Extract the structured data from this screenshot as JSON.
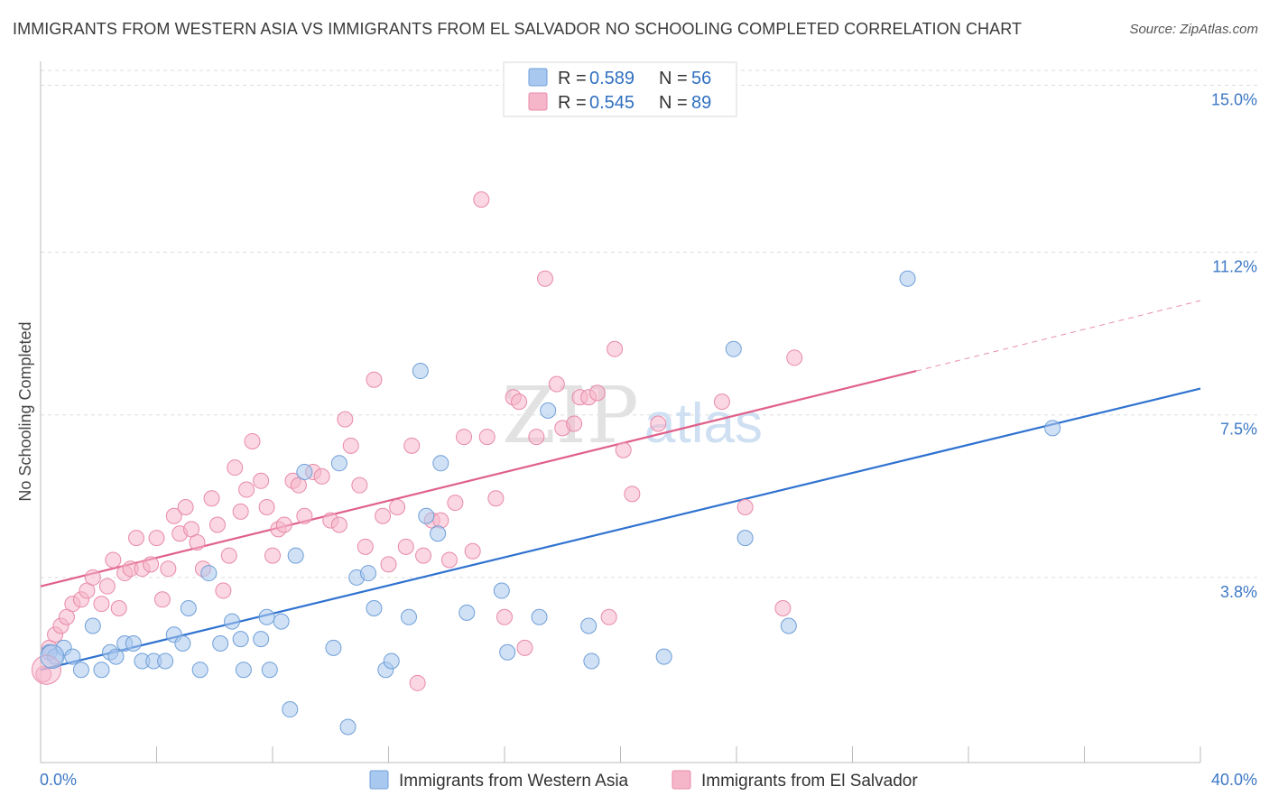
{
  "header": {
    "title": "IMMIGRANTS FROM WESTERN ASIA VS IMMIGRANTS FROM EL SALVADOR NO SCHOOLING COMPLETED CORRELATION CHART",
    "source": "Source: ZipAtlas.com"
  },
  "watermark": {
    "zip": "ZIP",
    "atlas": "atlas"
  },
  "legend": {
    "rows": [
      {
        "r_label": "R =",
        "r_value": "0.589",
        "n_label": "N =",
        "n_value": "56",
        "color": "#a9c8ef"
      },
      {
        "r_label": "R =",
        "r_value": "0.545",
        "n_label": "N =",
        "n_value": "89",
        "color": "#f6b6ca"
      }
    ]
  },
  "chart_data": {
    "type": "scatter",
    "title": "IMMIGRANTS FROM WESTERN ASIA VS IMMIGRANTS FROM EL SALVADOR NO SCHOOLING COMPLETED CORRELATION CHART",
    "ylabel": "No Schooling Completed",
    "xlabel": "",
    "xlim": [
      0,
      40
    ],
    "ylim": [
      0,
      15.4
    ],
    "x_tick_labels": [
      "0.0%",
      "40.0%"
    ],
    "y_ticks": [
      3.8,
      7.5,
      11.2,
      15.0
    ],
    "y_tick_labels": [
      "3.8%",
      "7.5%",
      "11.2%",
      "15.0%"
    ],
    "grid": "horizontal dashed",
    "legend_position": "top-center",
    "series": [
      {
        "name": "Immigrants from Western Asia",
        "color": "#a9c8ef",
        "stroke": "#6f9fd8",
        "line_color": "#2f72d0",
        "trend": {
          "x0": 0,
          "y0": 1.7,
          "x1": 40,
          "y1": 8.1
        },
        "points": [
          [
            0.3,
            2.1
          ],
          [
            0.5,
            2.0
          ],
          [
            0.8,
            2.2
          ],
          [
            1.1,
            2.0
          ],
          [
            1.4,
            1.7
          ],
          [
            1.8,
            2.7
          ],
          [
            2.1,
            1.7
          ],
          [
            2.4,
            2.1
          ],
          [
            2.6,
            2.0
          ],
          [
            2.9,
            2.3
          ],
          [
            3.2,
            2.3
          ],
          [
            3.5,
            1.9
          ],
          [
            3.9,
            1.9
          ],
          [
            4.3,
            1.9
          ],
          [
            4.6,
            2.5
          ],
          [
            4.9,
            2.3
          ],
          [
            5.1,
            3.1
          ],
          [
            5.5,
            1.7
          ],
          [
            5.8,
            3.9
          ],
          [
            6.2,
            2.3
          ],
          [
            6.6,
            2.8
          ],
          [
            6.9,
            2.4
          ],
          [
            7.0,
            1.7
          ],
          [
            7.6,
            2.4
          ],
          [
            7.8,
            2.9
          ],
          [
            7.9,
            1.7
          ],
          [
            8.3,
            2.8
          ],
          [
            8.6,
            0.8
          ],
          [
            8.8,
            4.3
          ],
          [
            9.1,
            6.2
          ],
          [
            10.1,
            2.2
          ],
          [
            10.3,
            6.4
          ],
          [
            10.6,
            0.4
          ],
          [
            10.9,
            3.8
          ],
          [
            11.3,
            3.9
          ],
          [
            11.5,
            3.1
          ],
          [
            11.9,
            1.7
          ],
          [
            12.1,
            1.9
          ],
          [
            12.7,
            2.9
          ],
          [
            13.1,
            8.5
          ],
          [
            13.3,
            5.2
          ],
          [
            13.7,
            4.8
          ],
          [
            13.8,
            6.4
          ],
          [
            14.7,
            3.0
          ],
          [
            15.9,
            3.5
          ],
          [
            16.1,
            2.1
          ],
          [
            17.2,
            2.9
          ],
          [
            17.5,
            7.6
          ],
          [
            18.9,
            2.7
          ],
          [
            19.0,
            1.9
          ],
          [
            21.5,
            2.0
          ],
          [
            23.9,
            9.0
          ],
          [
            24.3,
            4.7
          ],
          [
            25.8,
            2.7
          ],
          [
            29.9,
            10.6
          ],
          [
            34.9,
            7.2
          ]
        ]
      },
      {
        "name": "Immigrants from El Salvador",
        "color": "#f6b6ca",
        "stroke": "#e88aa8",
        "line_color": "#e0608a",
        "trend": {
          "x0": 0,
          "y0": 3.6,
          "x1": 30.2,
          "y1": 8.5
        },
        "trend_dashed_to": {
          "x": 40,
          "y": 10.1
        },
        "points": [
          [
            0.1,
            1.6
          ],
          [
            0.3,
            2.2
          ],
          [
            0.5,
            2.5
          ],
          [
            0.7,
            2.7
          ],
          [
            0.9,
            2.9
          ],
          [
            1.1,
            3.2
          ],
          [
            1.4,
            3.3
          ],
          [
            1.6,
            3.5
          ],
          [
            1.8,
            3.8
          ],
          [
            2.1,
            3.2
          ],
          [
            2.3,
            3.6
          ],
          [
            2.5,
            4.2
          ],
          [
            2.7,
            3.1
          ],
          [
            2.9,
            3.9
          ],
          [
            3.1,
            4.0
          ],
          [
            3.3,
            4.7
          ],
          [
            3.5,
            4.0
          ],
          [
            3.8,
            4.1
          ],
          [
            4.0,
            4.7
          ],
          [
            4.2,
            3.3
          ],
          [
            4.4,
            4.0
          ],
          [
            4.6,
            5.2
          ],
          [
            4.8,
            4.8
          ],
          [
            5.0,
            5.4
          ],
          [
            5.2,
            4.9
          ],
          [
            5.4,
            4.6
          ],
          [
            5.6,
            4.0
          ],
          [
            5.9,
            5.6
          ],
          [
            6.1,
            5.0
          ],
          [
            6.3,
            3.5
          ],
          [
            6.5,
            4.3
          ],
          [
            6.7,
            6.3
          ],
          [
            6.9,
            5.3
          ],
          [
            7.1,
            5.8
          ],
          [
            7.3,
            6.9
          ],
          [
            7.6,
            6.0
          ],
          [
            7.8,
            5.4
          ],
          [
            8.0,
            4.3
          ],
          [
            8.2,
            4.9
          ],
          [
            8.4,
            5.0
          ],
          [
            8.7,
            6.0
          ],
          [
            8.9,
            5.9
          ],
          [
            9.1,
            5.2
          ],
          [
            9.4,
            6.2
          ],
          [
            9.7,
            6.1
          ],
          [
            10.0,
            5.1
          ],
          [
            10.3,
            5.0
          ],
          [
            10.5,
            7.4
          ],
          [
            10.7,
            6.8
          ],
          [
            11.0,
            5.9
          ],
          [
            11.2,
            4.5
          ],
          [
            11.5,
            8.3
          ],
          [
            11.8,
            5.2
          ],
          [
            12.0,
            4.1
          ],
          [
            12.3,
            5.4
          ],
          [
            12.6,
            4.5
          ],
          [
            12.8,
            6.8
          ],
          [
            13.0,
            1.4
          ],
          [
            13.2,
            4.3
          ],
          [
            13.5,
            5.1
          ],
          [
            13.8,
            5.1
          ],
          [
            14.1,
            4.2
          ],
          [
            14.3,
            5.5
          ],
          [
            14.6,
            7.0
          ],
          [
            14.9,
            4.4
          ],
          [
            15.2,
            12.4
          ],
          [
            15.4,
            7.0
          ],
          [
            15.7,
            5.6
          ],
          [
            16.0,
            2.9
          ],
          [
            16.3,
            7.9
          ],
          [
            16.5,
            7.8
          ],
          [
            16.7,
            2.2
          ],
          [
            17.1,
            7.0
          ],
          [
            17.4,
            10.6
          ],
          [
            17.8,
            8.2
          ],
          [
            18.0,
            7.2
          ],
          [
            18.4,
            7.3
          ],
          [
            18.6,
            7.9
          ],
          [
            18.9,
            7.9
          ],
          [
            19.2,
            8.0
          ],
          [
            19.6,
            2.9
          ],
          [
            19.8,
            9.0
          ],
          [
            20.1,
            6.7
          ],
          [
            20.4,
            5.7
          ],
          [
            21.3,
            7.3
          ],
          [
            23.5,
            7.8
          ],
          [
            24.3,
            5.4
          ],
          [
            25.6,
            3.1
          ],
          [
            26.0,
            8.8
          ]
        ]
      }
    ]
  },
  "bottom_legend": {
    "items": [
      {
        "label": "Immigrants from Western Asia",
        "color": "#a9c8ef"
      },
      {
        "label": "Immigrants from El Salvador",
        "color": "#f6b6ca"
      }
    ]
  }
}
